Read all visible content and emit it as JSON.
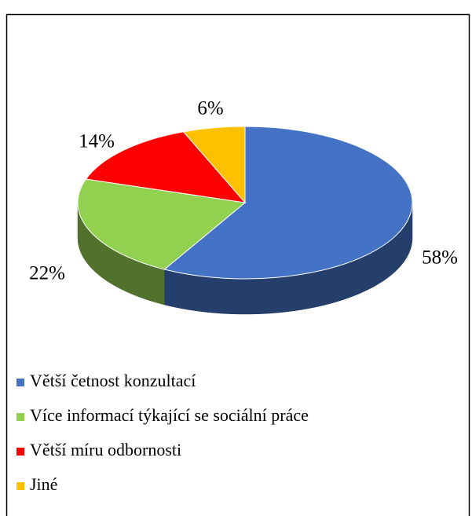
{
  "chart_data": {
    "type": "pie",
    "categories": [
      "Větší četnost konzultací",
      "Více informací týkající se sociální práce",
      "Větší míru odbornosti",
      "Jiné"
    ],
    "values": [
      58,
      22,
      14,
      6
    ],
    "value_labels": [
      "58%",
      "22%",
      "14%",
      "6%"
    ],
    "colors": [
      "#4472c4",
      "#92d050",
      "#ff0000",
      "#ffc000"
    ],
    "legend": "bottom"
  }
}
